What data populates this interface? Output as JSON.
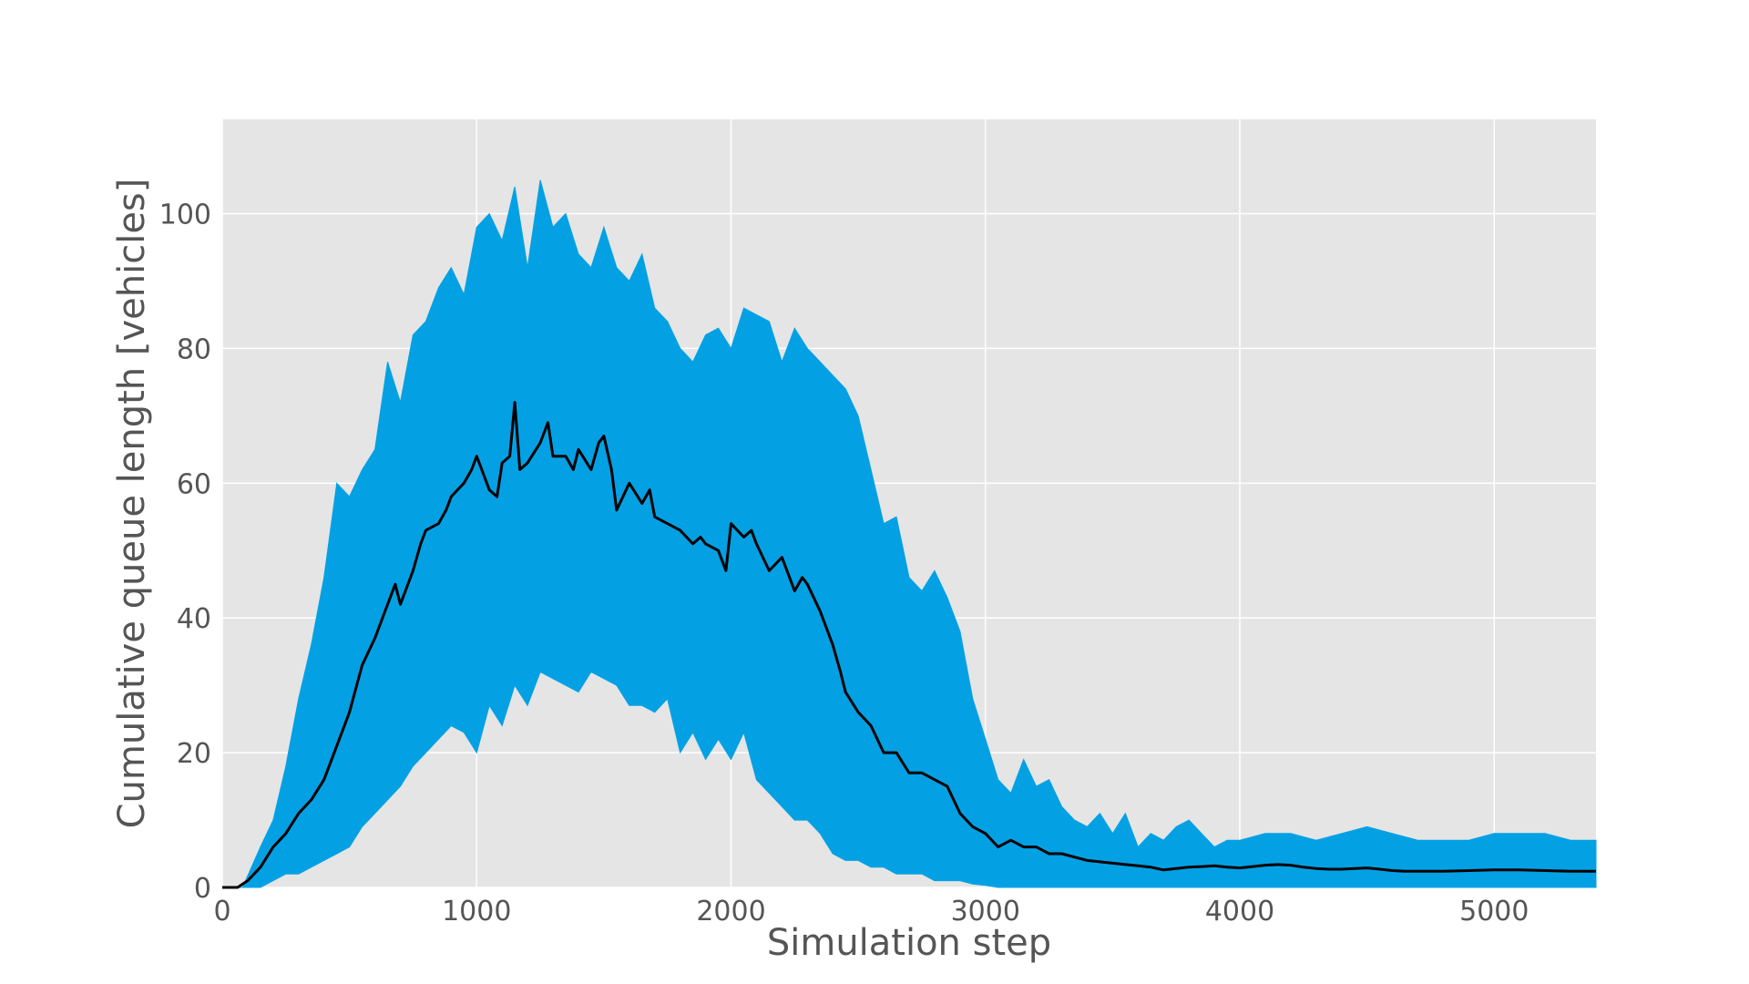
{
  "chart_data": {
    "type": "area",
    "title": "",
    "xlabel": "Simulation step",
    "ylabel": "Cumulative queue length [vehicles]",
    "xlim": [
      0,
      5400
    ],
    "ylim": [
      0,
      114
    ],
    "xticks": [
      0,
      1000,
      2000,
      3000,
      4000,
      5000
    ],
    "yticks": [
      0,
      20,
      40,
      60,
      80,
      100
    ],
    "grid": true,
    "legend": "none",
    "colors": {
      "band": "#03a1e4",
      "mean": "#000000",
      "plot_bg": "#e5e5e5",
      "grid": "#ffffff",
      "text": "#555555"
    },
    "series": [
      {
        "kind": "band",
        "x": [
          0,
          80,
          150,
          200,
          250,
          300,
          350,
          400,
          450,
          500,
          550,
          600,
          650,
          700,
          750,
          800,
          850,
          900,
          950,
          1000,
          1050,
          1100,
          1150,
          1200,
          1250,
          1300,
          1350,
          1400,
          1450,
          1500,
          1550,
          1600,
          1650,
          1700,
          1750,
          1800,
          1850,
          1900,
          1950,
          2000,
          2050,
          2100,
          2150,
          2200,
          2250,
          2300,
          2350,
          2400,
          2450,
          2500,
          2550,
          2600,
          2650,
          2700,
          2750,
          2800,
          2850,
          2900,
          2950,
          3000,
          3050,
          3100,
          3150,
          3200,
          3250,
          3300,
          3350,
          3400,
          3450,
          3500,
          3550,
          3600,
          3650,
          3700,
          3750,
          3800,
          3850,
          3900,
          3950,
          4000,
          4100,
          4200,
          4300,
          4400,
          4500,
          4600,
          4700,
          4800,
          4900,
          5000,
          5100,
          5200,
          5300,
          5400
        ],
        "upper": [
          0,
          0,
          6,
          10,
          18,
          28,
          36,
          46,
          60,
          58,
          62,
          65,
          78,
          72,
          82,
          84,
          89,
          92,
          88,
          98,
          100,
          96,
          104,
          92,
          105,
          98,
          100,
          94,
          92,
          98,
          92,
          90,
          94,
          86,
          84,
          80,
          78,
          82,
          83,
          80,
          86,
          85,
          84,
          78,
          83,
          80,
          78,
          76,
          74,
          70,
          62,
          54,
          55,
          46,
          44,
          47,
          43,
          38,
          28,
          22,
          16,
          14,
          19,
          15,
          16,
          12,
          10,
          9,
          11,
          8,
          11,
          6,
          8,
          7,
          9,
          10,
          8,
          6,
          7,
          7,
          8,
          8,
          7,
          8,
          9,
          8,
          7,
          7,
          7,
          8,
          8,
          8,
          7,
          7
        ],
        "lower": [
          0,
          0,
          0,
          1,
          2,
          2,
          3,
          4,
          5,
          6,
          9,
          11,
          13,
          15,
          18,
          20,
          22,
          24,
          23,
          20,
          27,
          24,
          30,
          27,
          32,
          31,
          30,
          29,
          32,
          31,
          30,
          27,
          27,
          26,
          28,
          20,
          23,
          19,
          22,
          19,
          23,
          16,
          14,
          12,
          10,
          10,
          8,
          5,
          4,
          4,
          3,
          3,
          2,
          2,
          2,
          1,
          1,
          1,
          0.5,
          0.3,
          0,
          0,
          0,
          0,
          0,
          0,
          0,
          0,
          0,
          0,
          0,
          0,
          0,
          0,
          0,
          0,
          0,
          0,
          0,
          0,
          0,
          0,
          0,
          0,
          0,
          0,
          0,
          0,
          0,
          0,
          0,
          0,
          0,
          0
        ]
      },
      {
        "kind": "line",
        "x": [
          0,
          60,
          100,
          150,
          200,
          250,
          300,
          350,
          400,
          450,
          500,
          550,
          600,
          650,
          680,
          700,
          750,
          780,
          800,
          850,
          880,
          900,
          950,
          980,
          1000,
          1050,
          1080,
          1100,
          1130,
          1150,
          1170,
          1200,
          1250,
          1280,
          1300,
          1350,
          1380,
          1400,
          1450,
          1480,
          1500,
          1530,
          1550,
          1600,
          1650,
          1680,
          1700,
          1750,
          1800,
          1850,
          1880,
          1900,
          1950,
          1980,
          2000,
          2050,
          2080,
          2100,
          2150,
          2200,
          2250,
          2280,
          2300,
          2350,
          2400,
          2430,
          2450,
          2500,
          2550,
          2600,
          2650,
          2700,
          2750,
          2800,
          2850,
          2900,
          2950,
          3000,
          3050,
          3100,
          3150,
          3200,
          3250,
          3300,
          3350,
          3400,
          3450,
          3500,
          3550,
          3600,
          3650,
          3700,
          3750,
          3800,
          3850,
          3900,
          3950,
          4000,
          4050,
          4100,
          4150,
          4200,
          4250,
          4300,
          4350,
          4400,
          4450,
          4500,
          4550,
          4600,
          4650,
          4700,
          4800,
          4900,
          5000,
          5100,
          5200,
          5300,
          5400
        ],
        "y": [
          0,
          0,
          1,
          3,
          6,
          8,
          11,
          13,
          16,
          21,
          26,
          33,
          37,
          42,
          45,
          42,
          47,
          51,
          53,
          54,
          56,
          58,
          60,
          62,
          64,
          59,
          58,
          63,
          64,
          72,
          62,
          63,
          66,
          69,
          64,
          64,
          62,
          65,
          62,
          66,
          67,
          62,
          56,
          60,
          57,
          59,
          55,
          54,
          53,
          51,
          52,
          51,
          50,
          47,
          54,
          52,
          53,
          51,
          47,
          49,
          44,
          46,
          45,
          41,
          36,
          32,
          29,
          26,
          24,
          20,
          20,
          17,
          17,
          16,
          15,
          11,
          9,
          8,
          6,
          7,
          6,
          6,
          5,
          5,
          4.5,
          4,
          3.8,
          3.6,
          3.4,
          3.2,
          3,
          2.6,
          2.8,
          3,
          3.1,
          3.2,
          3.0,
          2.9,
          3.1,
          3.3,
          3.4,
          3.3,
          3.0,
          2.8,
          2.7,
          2.7,
          2.8,
          2.9,
          2.7,
          2.5,
          2.4,
          2.4,
          2.4,
          2.5,
          2.6,
          2.6,
          2.5,
          2.4,
          2.4
        ]
      }
    ]
  }
}
